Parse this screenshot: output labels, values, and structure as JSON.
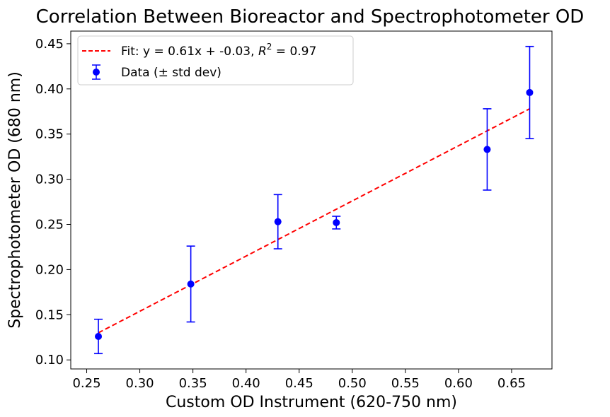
{
  "chart_data": {
    "type": "scatter",
    "title": "Correlation Between Bioreactor and Spectrophotometer OD",
    "xlabel": "Custom OD Instrument (620-750 nm)",
    "ylabel": "Spectrophotometer OD (680 nm)",
    "xlim": [
      0.235,
      0.688
    ],
    "ylim": [
      0.09,
      0.464
    ],
    "xticks": [
      "0.25",
      "0.30",
      "0.35",
      "0.40",
      "0.45",
      "0.50",
      "0.55",
      "0.60",
      "0.65"
    ],
    "yticks": [
      "0.10",
      "0.15",
      "0.20",
      "0.25",
      "0.30",
      "0.35",
      "0.40",
      "0.45"
    ],
    "series": [
      {
        "name": "Data (± std dev)",
        "x": [
          0.261,
          0.348,
          0.43,
          0.485,
          0.627,
          0.667
        ],
        "y": [
          0.126,
          0.184,
          0.253,
          0.252,
          0.333,
          0.396
        ],
        "yerr": [
          0.019,
          0.042,
          0.03,
          0.007,
          0.045,
          0.051
        ],
        "color": "#0000ff"
      }
    ],
    "fit": {
      "label_prefix": "Fit: y = 0.61x + -0.03, ",
      "label_r": "R",
      "label_sup": "2",
      "label_suffix": " = 0.97",
      "x_range": [
        0.261,
        0.667
      ],
      "y_range": [
        0.13,
        0.378
      ],
      "color": "#ff0000"
    },
    "legend_position": "upper-left"
  }
}
